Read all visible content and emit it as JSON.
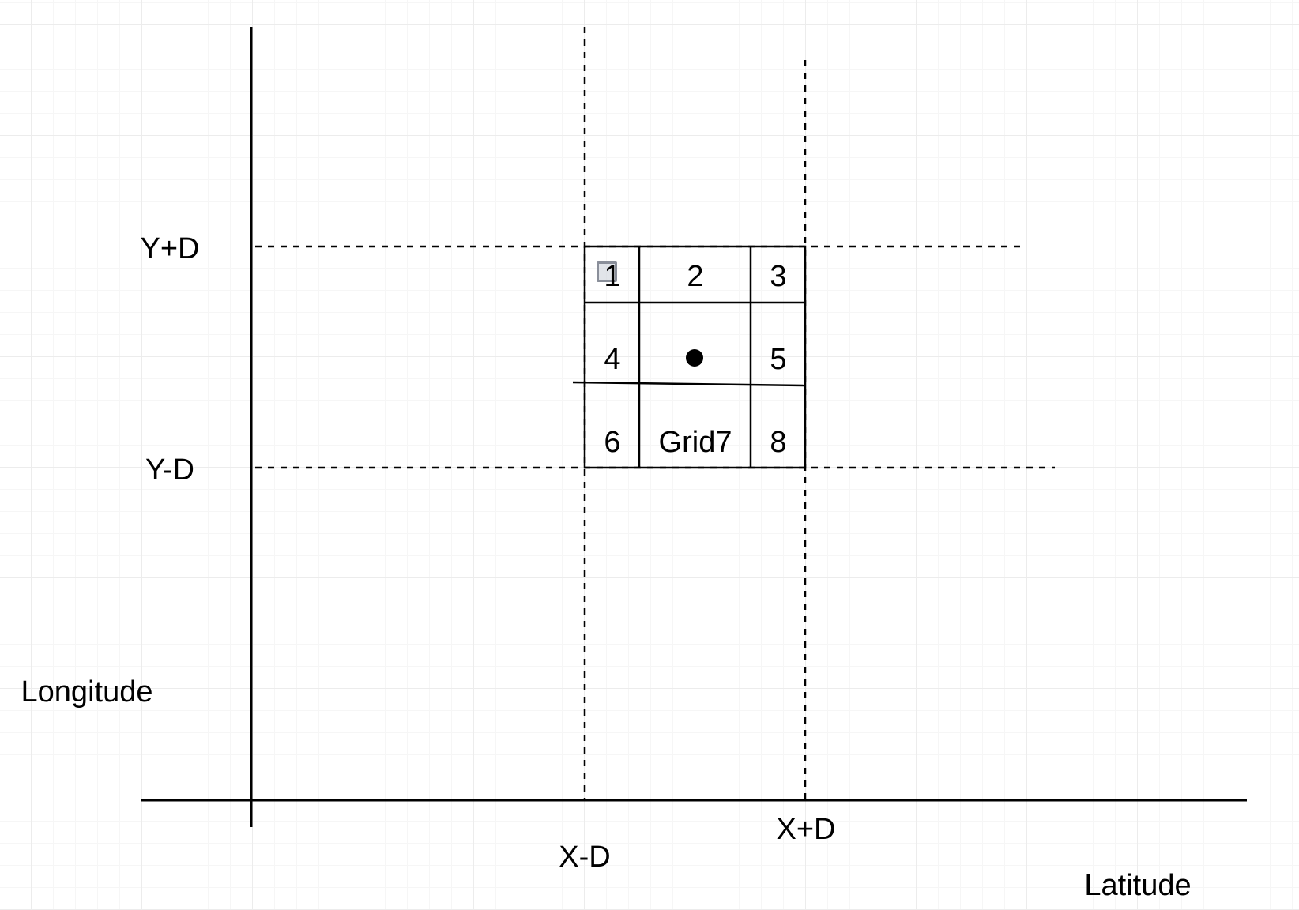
{
  "axes": {
    "x_label": "Latitude",
    "y_label": "Longitude"
  },
  "bounds": {
    "y_plus": "Y+D",
    "y_minus": "Y-D",
    "x_minus": "X-D",
    "x_plus": "X+D"
  },
  "grid_cells": {
    "c1": "1",
    "c2": "2",
    "c3": "3",
    "c4": "4",
    "c5": "5",
    "c6": "6",
    "c7": "Grid7",
    "c8": "8"
  },
  "colors": {
    "lines": "#000000",
    "background_grid": "#ececec",
    "selection_handle": "#8a8f9a"
  }
}
